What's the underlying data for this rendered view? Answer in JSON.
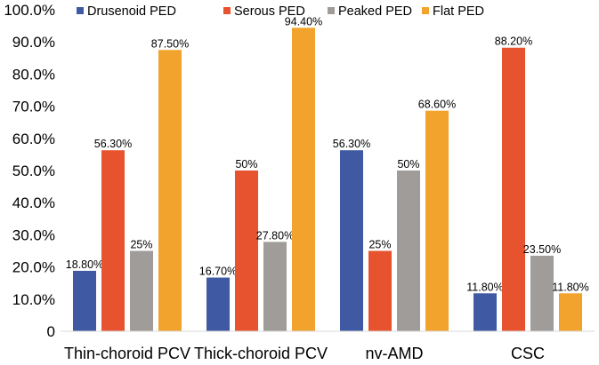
{
  "chart_data": {
    "type": "bar",
    "title": "",
    "xlabel": "",
    "ylabel": "",
    "ylim": [
      0,
      100
    ],
    "yticks": [
      {
        "value": 0,
        "label": "0"
      },
      {
        "value": 10,
        "label": "10.0%"
      },
      {
        "value": 20,
        "label": "20.0%"
      },
      {
        "value": 30,
        "label": "30.0%"
      },
      {
        "value": 40,
        "label": "40.0%"
      },
      {
        "value": 50,
        "label": "50.0%"
      },
      {
        "value": 60,
        "label": "60.0%"
      },
      {
        "value": 70,
        "label": "70.0%"
      },
      {
        "value": 80,
        "label": "80.0%"
      },
      {
        "value": 90,
        "label": "90.0%"
      },
      {
        "value": 100,
        "label": "100.0%"
      }
    ],
    "grid": false,
    "legend_position": "top",
    "categories": [
      "Thin-choroid PCV",
      "Thick-choroid PCV",
      "nv-AMD",
      "CSC"
    ],
    "series": [
      {
        "name": "Drusenoid PED",
        "color": "#3f5aa3",
        "values": [
          18.8,
          16.7,
          56.3,
          11.8
        ],
        "labels": [
          "18.80%",
          "16.70%",
          "56.30%",
          "11.80%"
        ]
      },
      {
        "name": "Serous PED",
        "color": "#e7532f",
        "values": [
          56.3,
          50,
          25,
          88.2
        ],
        "labels": [
          "56.30%",
          "50%",
          "25%",
          "88.20%"
        ]
      },
      {
        "name": "Peaked PED",
        "color": "#a09c99",
        "values": [
          25,
          27.8,
          50,
          23.5
        ],
        "labels": [
          "25%",
          "27.80%",
          "50%",
          "23.50%"
        ]
      },
      {
        "name": "Flat PED",
        "color": "#f2a32e",
        "values": [
          87.5,
          94.4,
          68.6,
          11.8
        ],
        "labels": [
          "87.50%",
          "94.40%",
          "68.60%",
          "11.80%"
        ]
      }
    ]
  }
}
